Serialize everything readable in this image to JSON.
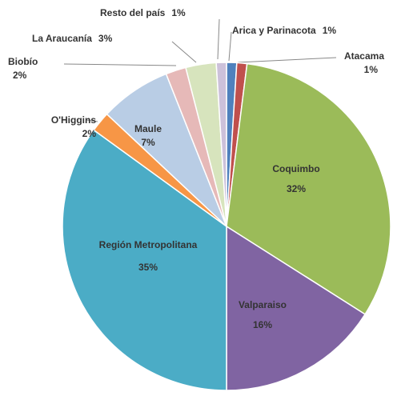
{
  "chart_data": {
    "type": "pie",
    "categories": [
      "Arica y Parinacota",
      "Atacama",
      "Coquimbo",
      "Valparaiso",
      "Región Metropolitana",
      "O'Higgins",
      "Maule",
      "Biobío",
      "La Araucanía",
      "Resto del país"
    ],
    "values": [
      1,
      1,
      32,
      16,
      35,
      2,
      7,
      2,
      3,
      1
    ],
    "value_labels": [
      "1%",
      "1%",
      "32%",
      "16%",
      "35%",
      "2%",
      "7%",
      "2%",
      "3%",
      "1%"
    ],
    "colors": [
      "#4f81bd",
      "#c0504d",
      "#9bbb59",
      "#8064a2",
      "#4bacc6",
      "#f79646",
      "#b9cde5",
      "#e6b9b8",
      "#d7e4bd",
      "#ccc1da"
    ]
  }
}
